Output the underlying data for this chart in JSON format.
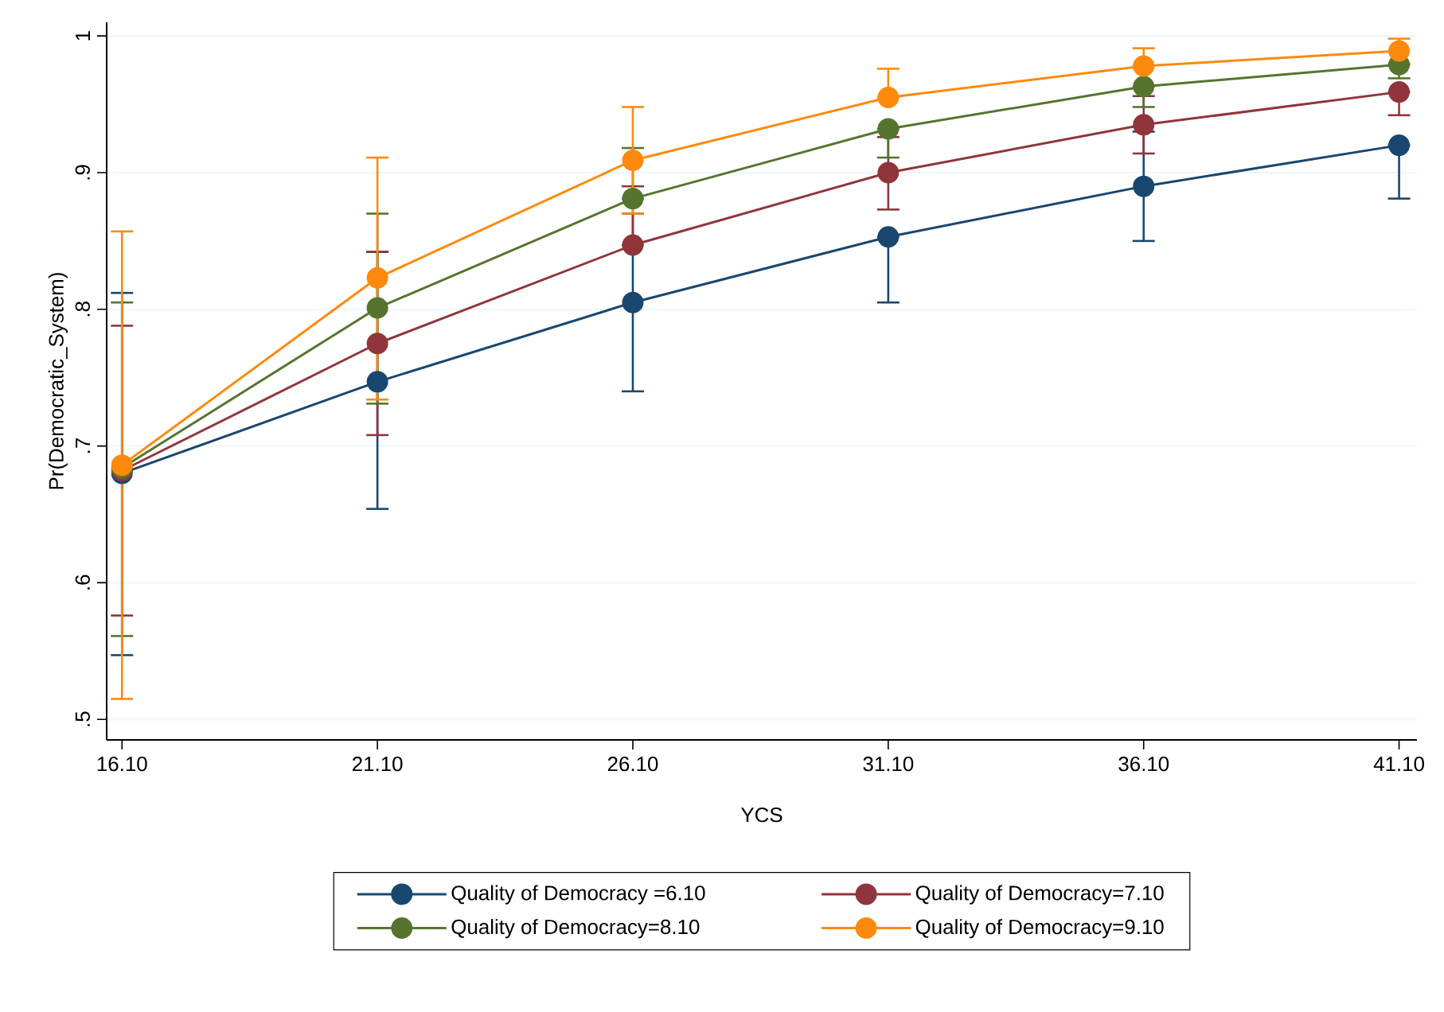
{
  "chart_data": {
    "type": "line",
    "xlabel": "YCS",
    "ylabel": "Pr(Democratic_System)",
    "x": [
      16.1,
      21.1,
      26.1,
      31.1,
      36.1,
      41.1
    ],
    "xlim": [
      15.8,
      41.45
    ],
    "ylim": [
      0.485,
      1.01
    ],
    "xticks": [
      {
        "value": 16.1,
        "label": "16.10"
      },
      {
        "value": 21.1,
        "label": "21.10"
      },
      {
        "value": 26.1,
        "label": "26.10"
      },
      {
        "value": 31.1,
        "label": "31.10"
      },
      {
        "value": 36.1,
        "label": "36.10"
      },
      {
        "value": 41.1,
        "label": "41.10"
      }
    ],
    "yticks": [
      {
        "value": 0.5,
        "label": ".5"
      },
      {
        "value": 0.6,
        "label": ".6"
      },
      {
        "value": 0.7,
        "label": ".7"
      },
      {
        "value": 0.8,
        "label": ".8"
      },
      {
        "value": 0.9,
        "label": ".9"
      },
      1
    ],
    "grid": "y",
    "legend": "bottom",
    "marker": "circle",
    "line_style": "solid",
    "series": [
      {
        "name": "Quality of Democracy =6.10",
        "color": "#1a476f",
        "values": [
          0.68,
          0.747,
          0.805,
          0.853,
          0.89,
          0.92
        ],
        "errors": [
          [
            0.547,
            0.812
          ],
          [
            0.654,
            0.842
          ],
          [
            0.74,
            0.87
          ],
          [
            0.805,
            0.853
          ],
          [
            0.85,
            0.93
          ],
          [
            0.881,
            0.92
          ]
        ]
      },
      {
        "name": "Quality of Democracy=7.10",
        "color": "#90353b",
        "values": [
          0.682,
          0.775,
          0.847,
          0.9,
          0.935,
          0.959
        ],
        "errors": [
          [
            0.576,
            0.788
          ],
          [
            0.708,
            0.842
          ],
          [
            0.847,
            0.89
          ],
          [
            0.873,
            0.926
          ],
          [
            0.914,
            0.956
          ],
          [
            0.942,
            0.959
          ]
        ]
      },
      {
        "name": "Quality of Democracy=8.10",
        "color": "#55752f",
        "values": [
          0.684,
          0.801,
          0.881,
          0.932,
          0.963,
          0.979
        ],
        "errors": [
          [
            0.561,
            0.805
          ],
          [
            0.731,
            0.87
          ],
          [
            0.881,
            0.918
          ],
          [
            0.911,
            0.932
          ],
          [
            0.948,
            0.963
          ],
          [
            0.969,
            0.979
          ]
        ]
      },
      {
        "name": "Quality of Democracy=9.10",
        "color": "#fd8a0c",
        "values": [
          0.686,
          0.823,
          0.909,
          0.955,
          0.978,
          0.989
        ],
        "errors": [
          [
            0.515,
            0.857
          ],
          [
            0.734,
            0.911
          ],
          [
            0.87,
            0.948
          ],
          [
            0.955,
            0.976
          ],
          [
            0.978,
            0.991
          ],
          [
            0.98,
            0.998
          ]
        ]
      }
    ]
  }
}
